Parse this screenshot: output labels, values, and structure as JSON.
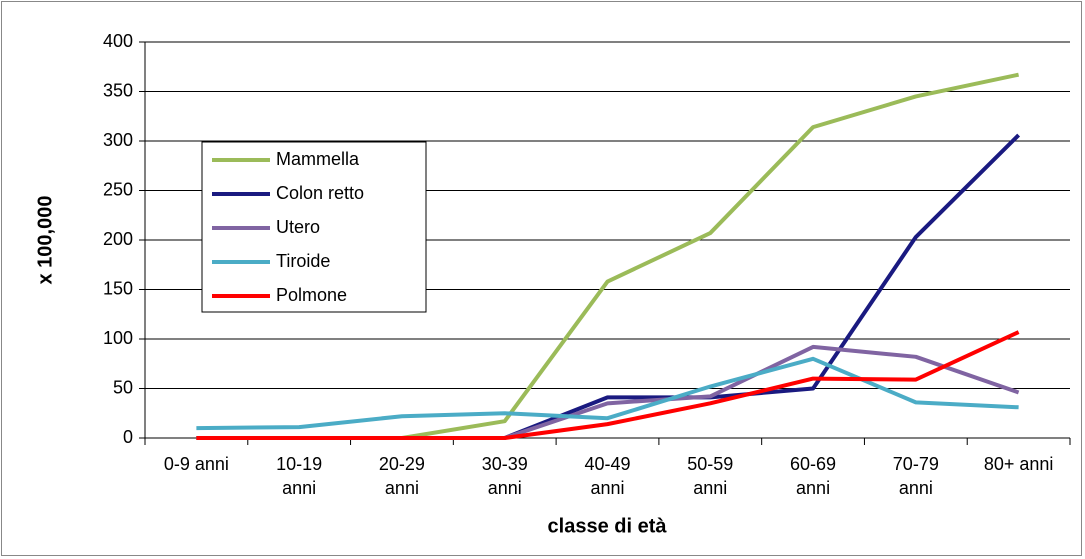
{
  "chart_data": {
    "type": "line",
    "categories": [
      "0-9 anni",
      "10-19 anni",
      "20-29 anni",
      "30-39 anni",
      "40-49 anni",
      "50-59 anni",
      "60-69 anni",
      "70-79 anni",
      "80+ anni"
    ],
    "series": [
      {
        "name": "Mammella",
        "color": "#9bbb59",
        "values": [
          0,
          0,
          0,
          17,
          158,
          207,
          314,
          345,
          367
        ]
      },
      {
        "name": "Colon retto",
        "color": "#1a1a80",
        "values": [
          0,
          0,
          0,
          0,
          41,
          41,
          50,
          203,
          306
        ]
      },
      {
        "name": "Utero",
        "color": "#8064a2",
        "values": [
          0,
          0,
          0,
          0,
          35,
          42,
          92,
          82,
          46
        ]
      },
      {
        "name": "Tiroide",
        "color": "#4bacc6",
        "values": [
          10,
          11,
          22,
          25,
          20,
          52,
          80,
          36,
          31
        ]
      },
      {
        "name": "Polmone",
        "color": "#ff0000",
        "values": [
          0,
          0,
          0,
          0,
          14,
          35,
          60,
          59,
          107
        ]
      }
    ],
    "ylim": [
      0,
      400
    ],
    "yticks": [
      0,
      50,
      100,
      150,
      200,
      250,
      300,
      350,
      400
    ],
    "grid": true,
    "ylabel": "x 100,000",
    "xlabel": "classe di età"
  }
}
